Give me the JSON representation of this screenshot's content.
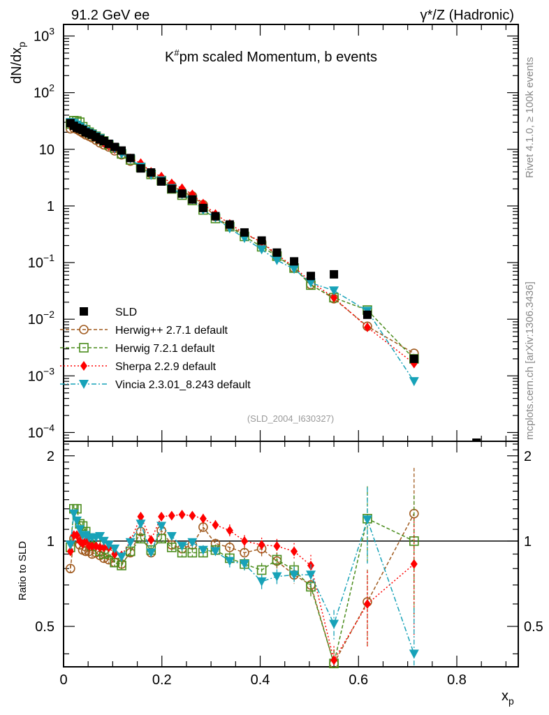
{
  "header": {
    "left": "91.2 GeV ee",
    "right": "γ*/Z (Hadronic)"
  },
  "side_labels": {
    "rivet": "Rivet 4.1.0, ≥ 100k events",
    "mcplots": "mcplots.cern.ch [arXiv:1306.3436]"
  },
  "chart_data": [
    {
      "panel": "main",
      "type": "line",
      "title": "K#pm scaled Momentum, b events",
      "title_main": "K",
      "title_sup": "#",
      "title_rest": "pm scaled Momentum, b events",
      "ylabel": "dN/dx",
      "ylabel_sub": "p",
      "xlabel": "x",
      "xlabel_sub": "p",
      "yscale": "log",
      "ylim": [
        7e-05,
        1600
      ],
      "xlim": [
        0,
        0.925
      ],
      "ytick_labels": [
        {
          "value": 1000,
          "base": "10",
          "exp": "3"
        },
        {
          "value": 100,
          "base": "10",
          "exp": "2"
        },
        {
          "value": 10,
          "base": "10",
          "exp": ""
        },
        {
          "value": 1,
          "base": "1",
          "exp": ""
        },
        {
          "value": 0.1,
          "base": "10",
          "exp": "−1"
        },
        {
          "value": 0.01,
          "base": "10",
          "exp": "−2"
        },
        {
          "value": 0.001,
          "base": "10",
          "exp": "−3"
        },
        {
          "value": 0.0001,
          "base": "10",
          "exp": "−4"
        }
      ],
      "watermark": "(SLD_2004_I630327)",
      "legend_position": "bottom-left",
      "x": [
        0.014,
        0.021,
        0.027,
        0.033,
        0.039,
        0.045,
        0.052,
        0.058,
        0.066,
        0.074,
        0.082,
        0.092,
        0.104,
        0.118,
        0.136,
        0.157,
        0.178,
        0.199,
        0.22,
        0.241,
        0.262,
        0.284,
        0.309,
        0.338,
        0.368,
        0.403,
        0.434,
        0.469,
        0.503,
        0.55,
        0.618,
        0.713
      ],
      "series": [
        {
          "name": "SLD",
          "color": "#000000",
          "marker": "square-filled",
          "line": "none",
          "x": [
            0.014,
            0.021,
            0.027,
            0.033,
            0.039,
            0.045,
            0.052,
            0.058,
            0.066,
            0.074,
            0.082,
            0.092,
            0.104,
            0.118,
            0.136,
            0.157,
            0.178,
            0.199,
            0.22,
            0.241,
            0.262,
            0.284,
            0.309,
            0.338,
            0.368,
            0.403,
            0.434,
            0.469,
            0.503,
            0.55,
            0.618,
            0.713,
            0.84
          ],
          "values": [
            29,
            26,
            24,
            23,
            22,
            20,
            19,
            18,
            16.5,
            15,
            14,
            12.5,
            11,
            9.5,
            7,
            4.6,
            3.9,
            2.7,
            2.0,
            1.65,
            1.3,
            0.92,
            0.66,
            0.47,
            0.34,
            0.245,
            0.15,
            0.105,
            0.058,
            0.062,
            0.012,
            0.002,
            6.5e-05
          ]
        },
        {
          "name": "Herwig++ 2.7.1 default",
          "color": "#a05a1e",
          "marker": "circle-open",
          "line": "dashed",
          "values": [
            23,
            23.5,
            22.5,
            21,
            19.5,
            18,
            17,
            16,
            14.5,
            13,
            12,
            11,
            9.4,
            8,
            6.2,
            4.8,
            3.7,
            2.95,
            2.3,
            1.8,
            1.5,
            1.05,
            0.65,
            0.43,
            0.32,
            0.23,
            0.13,
            0.08,
            0.041,
            0.023,
            0.0075,
            0.0025
          ]
        },
        {
          "name": "Herwig 7.2.1 default",
          "color": "#4a8c1c",
          "marker": "square-open",
          "line": "dashed",
          "values": [
            28,
            32,
            31.5,
            30,
            25,
            22,
            20,
            18.5,
            17,
            15.5,
            14,
            12,
            10.5,
            8.3,
            6.5,
            4.8,
            3.6,
            2.8,
            2.0,
            1.55,
            1.25,
            0.85,
            0.6,
            0.43,
            0.29,
            0.19,
            0.13,
            0.08,
            0.04,
            0.024,
            0.0145,
            0.002
          ]
        },
        {
          "name": "Sherpa 2.2.9 default",
          "color": "#ff0000",
          "marker": "diamond-filled",
          "line": "dotted",
          "values": [
            27,
            27,
            25,
            23,
            21,
            20,
            19,
            17.5,
            16,
            14.5,
            13,
            11.5,
            10,
            8.5,
            6.9,
            5.7,
            4.0,
            3.3,
            2.5,
            2.05,
            1.6,
            1.1,
            0.72,
            0.48,
            0.33,
            0.23,
            0.14,
            0.083,
            0.046,
            0.024,
            0.0072,
            0.00165
          ]
        },
        {
          "name": "Vincia 2.3.01_8.243 default",
          "color": "#17a2b8",
          "marker": "triangle-down-filled",
          "line": "dashdot",
          "values": [
            30,
            29,
            27,
            25,
            23,
            21,
            19.5,
            18.5,
            17,
            15.5,
            14,
            12.3,
            10.3,
            8.3,
            6.8,
            4.9,
            3.5,
            2.8,
            2.05,
            1.6,
            1.3,
            0.85,
            0.62,
            0.4,
            0.27,
            0.17,
            0.11,
            0.077,
            0.044,
            0.032,
            0.014,
            0.0008
          ]
        }
      ]
    },
    {
      "panel": "ratio",
      "type": "line",
      "ylabel": "Ratio to SLD",
      "yscale": "log",
      "ylim": [
        0.36,
        2.25
      ],
      "xlim": [
        0,
        0.925
      ],
      "reference_line": 1,
      "ytick_labels": [
        {
          "value": 2,
          "label": "2"
        },
        {
          "value": 1,
          "label": "1"
        },
        {
          "value": 0.5,
          "label": "0.5"
        }
      ],
      "xtick_labels": [
        {
          "value": 0,
          "label": "0"
        },
        {
          "value": 0.2,
          "label": "0.2"
        },
        {
          "value": 0.4,
          "label": "0.4"
        },
        {
          "value": 0.6,
          "label": "0.6"
        },
        {
          "value": 0.8,
          "label": "0.8"
        }
      ],
      "x": [
        0.014,
        0.021,
        0.027,
        0.033,
        0.039,
        0.045,
        0.052,
        0.058,
        0.066,
        0.074,
        0.082,
        0.092,
        0.104,
        0.118,
        0.136,
        0.157,
        0.178,
        0.199,
        0.22,
        0.241,
        0.262,
        0.284,
        0.309,
        0.338,
        0.368,
        0.403,
        0.434,
        0.469,
        0.503,
        0.55,
        0.618,
        0.713
      ],
      "series": [
        {
          "name": "Herwig++ 2.7.1 default",
          "color": "#a05a1e",
          "values": [
            0.8,
            1.02,
            1.02,
            0.97,
            0.93,
            0.92,
            0.92,
            0.9,
            0.91,
            0.89,
            0.87,
            0.86,
            0.84,
            0.83,
            0.91,
            1.08,
            0.91,
            1.09,
            0.97,
            0.94,
            0.97,
            1.12,
            0.98,
            0.95,
            0.91,
            0.94,
            0.85,
            0.76,
            0.7,
            0.37,
            0.61,
            1.25
          ]
        },
        {
          "name": "Herwig 7.2.1 default",
          "color": "#4a8c1c",
          "values": [
            0.95,
            1.3,
            1.3,
            1.15,
            1.13,
            1.08,
            1.02,
            0.96,
            1.0,
            0.92,
            0.9,
            0.91,
            0.84,
            0.82,
            0.92,
            1.02,
            0.93,
            1.02,
            0.95,
            0.91,
            0.91,
            0.91,
            0.93,
            0.87,
            0.83,
            0.79,
            0.86,
            0.79,
            0.69,
            0.37,
            1.2,
            1.0
          ]
        },
        {
          "name": "Sherpa 2.2.9 default",
          "color": "#ff0000",
          "values": [
            0.92,
            1.05,
            1.05,
            1.0,
            0.98,
            1.0,
            0.96,
            0.96,
            0.96,
            0.95,
            0.95,
            0.95,
            0.9,
            0.89,
            1.0,
            1.22,
            1.01,
            1.22,
            1.23,
            1.24,
            1.23,
            1.2,
            1.14,
            1.09,
            1.0,
            0.97,
            0.96,
            0.92,
            0.82,
            0.38,
            0.6,
            0.83
          ]
        },
        {
          "name": "Vincia 2.3.01_8.243 default",
          "color": "#17a2b8",
          "values": [
            0.97,
            1.25,
            1.18,
            1.1,
            1.05,
            1.05,
            1.03,
            1.03,
            1.03,
            1.04,
            1.0,
            0.97,
            0.94,
            0.88,
            0.99,
            1.15,
            0.91,
            1.13,
            1.04,
            0.96,
            0.99,
            0.93,
            0.92,
            0.85,
            0.83,
            0.72,
            0.75,
            0.76,
            0.76,
            0.51,
            1.19,
            0.4
          ]
        }
      ],
      "error_fraction": [
        0.03,
        0.03,
        0.03,
        0.03,
        0.03,
        0.03,
        0.03,
        0.03,
        0.03,
        0.03,
        0.03,
        0.03,
        0.03,
        0.03,
        0.03,
        0.03,
        0.03,
        0.03,
        0.03,
        0.03,
        0.03,
        0.04,
        0.04,
        0.05,
        0.05,
        0.06,
        0.06,
        0.07,
        0.09,
        0.12,
        0.3,
        0.45
      ]
    }
  ]
}
